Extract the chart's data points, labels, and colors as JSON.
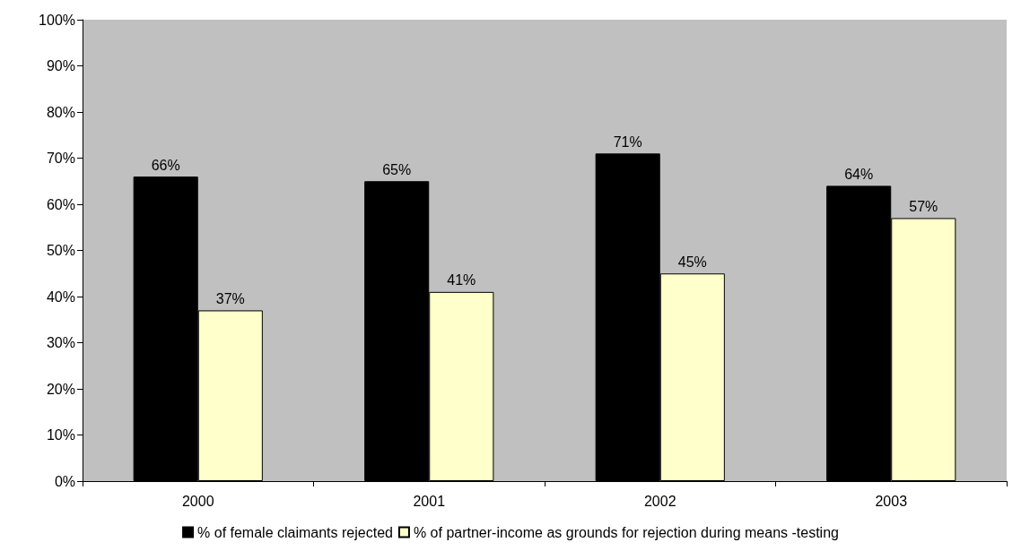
{
  "chart_data": {
    "type": "bar",
    "categories": [
      "2000",
      "2001",
      "2002",
      "2003"
    ],
    "series": [
      {
        "name": "% of female claimants rejected",
        "color": "#000000",
        "values": [
          66,
          65,
          71,
          64
        ],
        "value_labels": [
          "66%",
          "65%",
          "71%",
          "64%"
        ]
      },
      {
        "name": "% of partner-income as grounds for rejection during means -testing",
        "color": "#ffffcc",
        "values": [
          37,
          41,
          45,
          57
        ],
        "value_labels": [
          "37%",
          "41%",
          "45%",
          "57%"
        ]
      }
    ],
    "ylim": [
      0,
      100
    ],
    "yticks": [
      {
        "value": 0,
        "label": "0%"
      },
      {
        "value": 10,
        "label": "10%"
      },
      {
        "value": 20,
        "label": "20%"
      },
      {
        "value": 30,
        "label": "30%"
      },
      {
        "value": 40,
        "label": "40%"
      },
      {
        "value": 50,
        "label": "50%"
      },
      {
        "value": 60,
        "label": "60%"
      },
      {
        "value": 70,
        "label": "70%"
      },
      {
        "value": 80,
        "label": "80%"
      },
      {
        "value": 90,
        "label": "90%"
      },
      {
        "value": 100,
        "label": "100%"
      }
    ],
    "legend": "bottom"
  }
}
